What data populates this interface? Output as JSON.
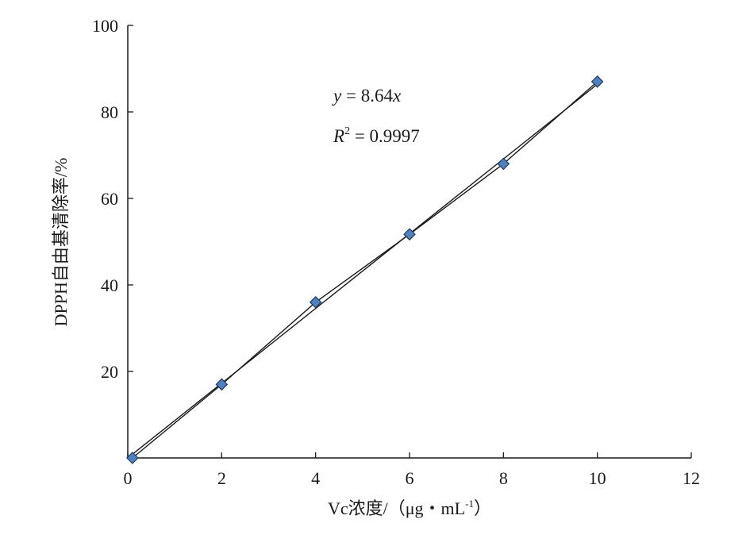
{
  "chart_data": {
    "type": "scatter",
    "xlabel": "Vc浓度/（μg·mL⁻¹）",
    "xlabel_parts": {
      "main": "Vc浓度/（μg・mL",
      "sup": "-1",
      "end": "）"
    },
    "ylabel": "DPPH自由基清除率/%",
    "xlim": [
      0,
      12
    ],
    "ylim": [
      0,
      100
    ],
    "x_ticks": [
      0,
      2,
      4,
      6,
      8,
      10,
      12
    ],
    "y_ticks": [
      20,
      40,
      60,
      80,
      100
    ],
    "grid": false,
    "legend": "none",
    "series": [
      {
        "x": [
          0.1,
          2,
          4,
          6,
          8,
          10
        ],
        "y": [
          0,
          17,
          36,
          51.7,
          68,
          87
        ],
        "marker": "diamond",
        "marker_color": "#4f81bd",
        "connected": true
      }
    ],
    "trendline": {
      "slope": 8.64,
      "intercept": 0,
      "x_range": [
        0.1,
        10
      ]
    },
    "annotations": {
      "equation": {
        "y_var": "y",
        "rhs": " = 8.64",
        "x_var": "x"
      },
      "r_squared": {
        "r": "R",
        "sup": "2",
        "rhs": " = 0.9997"
      }
    }
  }
}
